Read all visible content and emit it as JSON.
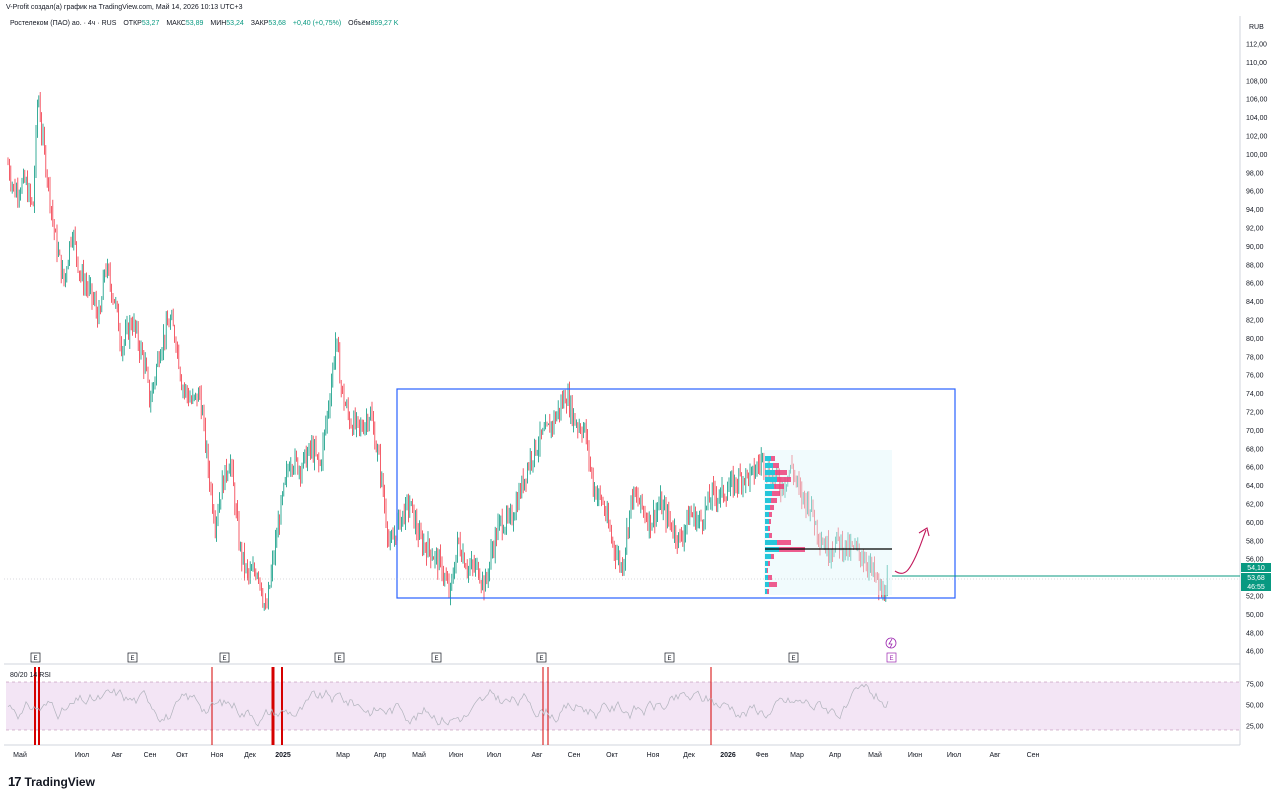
{
  "header": {
    "caption": "V-Profit создал(а) график на TradingView.com, Май 14, 2026 10:13 UTC+3",
    "symbol": "Ростелеком (ПАО) ао. · 4ч · RUS",
    "open_label": "ОТКР",
    "open_value": "53,27",
    "high_label": "МАКС",
    "high_value": "53,89",
    "low_label": "МИН",
    "low_value": "53,24",
    "close_label": "ЗАКР",
    "close_value": "53,68",
    "change_value": "+0,40 (+0,75%)",
    "volume_label": "Объём",
    "volume_value": "859,27 K",
    "currency": "RUB"
  },
  "price_axis": {
    "labels": [
      "112,00",
      "110,00",
      "108,00",
      "106,00",
      "104,00",
      "102,00",
      "100,00",
      "98,00",
      "96,00",
      "94,00",
      "92,00",
      "90,00",
      "88,00",
      "86,00",
      "84,00",
      "82,00",
      "80,00",
      "78,00",
      "76,00",
      "74,00",
      "72,00",
      "70,00",
      "68,00",
      "66,00",
      "64,00",
      "62,00",
      "60,00",
      "58,00",
      "56,00",
      "52,00",
      "50,00",
      "48,00",
      "46,00"
    ]
  },
  "price_badges": [
    {
      "value": "54,10",
      "color": "#089981"
    },
    {
      "value": "53,68",
      "color": "#089981"
    },
    {
      "value": "46:55",
      "color": "#089981"
    }
  ],
  "time_axis": {
    "labels": [
      "Май",
      "Июл",
      "Авг",
      "Сен",
      "Окт",
      "Ноя",
      "Дек",
      "2025",
      "Мар",
      "Апр",
      "Май",
      "Июн",
      "Июл",
      "Авг",
      "Сен",
      "Окт",
      "Ноя",
      "Дек",
      "2026",
      "Фев",
      "Мар",
      "Апр",
      "Май",
      "Июн",
      "Июл",
      "Авг",
      "Сен"
    ]
  },
  "earnings_markers": {
    "label": "E",
    "count": 9
  },
  "rsi": {
    "label": "80/20 14 RSI",
    "axis_labels": [
      "75,00",
      "50,00",
      "25,00"
    ]
  },
  "colors": {
    "up": "#089981",
    "down": "#f23645",
    "box": "#2962ff",
    "profile_a": "#26c6da",
    "profile_b": "#ec407a",
    "rsi_fill": "#f3e5f5",
    "arrow": "#c2185b"
  },
  "chart_data": {
    "type": "line",
    "title": "Ростелеком (ПАО) ао. · 4ч · RUS",
    "currency": "RUB",
    "x": [
      "2024-05",
      "2024-06",
      "2024-07",
      "2024-08",
      "2024-09",
      "2024-10",
      "2024-11",
      "2024-12",
      "2025-01",
      "2025-02",
      "2025-03",
      "2025-04",
      "2025-05",
      "2025-06",
      "2025-07",
      "2025-08",
      "2025-09",
      "2025-10",
      "2025-11",
      "2025-12",
      "2026-01",
      "2026-02",
      "2026-03",
      "2026-04",
      "2026-05"
    ],
    "series": [
      {
        "values": [
          99,
          104,
          93,
          86,
          78,
          72,
          58,
          52,
          62,
          68,
          78,
          68,
          60,
          55,
          58,
          70,
          72,
          58,
          64,
          61,
          64,
          65,
          58,
          56,
          53.68
        ]
      }
    ],
    "ylim": [
      46,
      113
    ],
    "range_box": {
      "high": 74.5,
      "low": 51.5,
      "from": "2025-04",
      "to": "2026-05"
    },
    "volume_profile_poc": 57.2,
    "grid": false,
    "legend": "top-left"
  }
}
